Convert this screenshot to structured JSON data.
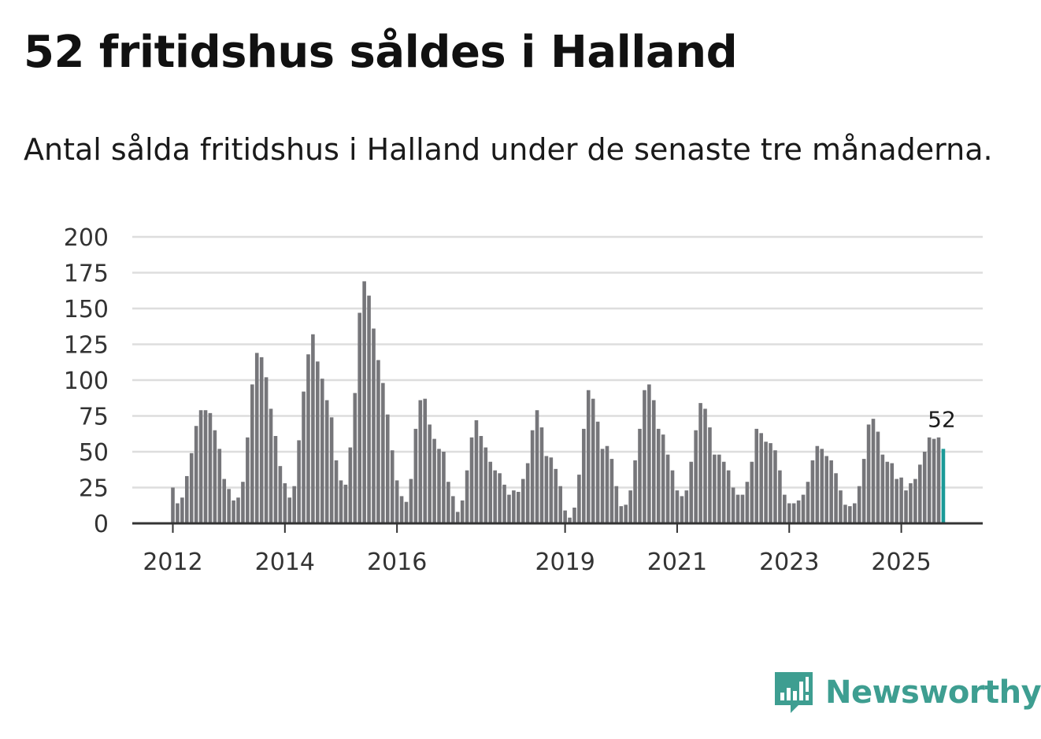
{
  "title": "52 fritidshus såldes i Halland",
  "subtitle": "Antal sålda fritidshus i Halland under de senaste tre månaderna.",
  "brand": {
    "name": "Newsworthy",
    "icon": "bar-chart-speech-bubble-icon"
  },
  "colors": {
    "bars": "#76767a",
    "highlight": "#1b9a98",
    "grid": "#dddddd",
    "axis": "#333333",
    "brand": "#3e9e91"
  },
  "chart_data": {
    "type": "bar",
    "title": "52 fritidshus såldes i Halland",
    "xlabel": "",
    "ylabel": "",
    "ylim": [
      0,
      200
    ],
    "yticks": [
      0,
      25,
      50,
      75,
      100,
      125,
      150,
      175,
      200
    ],
    "x_tick_labels": [
      {
        "label": "2012",
        "month_index": 0
      },
      {
        "label": "2014",
        "month_index": 24
      },
      {
        "label": "2016",
        "month_index": 48
      },
      {
        "label": "2019",
        "month_index": 84
      },
      {
        "label": "2021",
        "month_index": 108
      },
      {
        "label": "2023",
        "month_index": 132
      },
      {
        "label": "2025",
        "month_index": 156
      }
    ],
    "period": "monthly, jan 2012 – sep 2025 (rolling three-month totals)",
    "series": [
      {
        "name": "Antal sålda fritidshus",
        "values": [
          25,
          14,
          18,
          33,
          49,
          68,
          79,
          79,
          77,
          65,
          52,
          31,
          24,
          16,
          18,
          29,
          60,
          97,
          119,
          116,
          102,
          80,
          61,
          40,
          28,
          18,
          26,
          58,
          92,
          118,
          132,
          113,
          101,
          86,
          74,
          44,
          30,
          27,
          53,
          91,
          147,
          169,
          159,
          136,
          114,
          98,
          76,
          51,
          30,
          19,
          15,
          31,
          66,
          86,
          87,
          69,
          59,
          52,
          50,
          29,
          19,
          8,
          16,
          37,
          60,
          72,
          61,
          53,
          43,
          37,
          35,
          27,
          20,
          23,
          22,
          31,
          42,
          65,
          79,
          67,
          47,
          46,
          38,
          26,
          9,
          4,
          11,
          34,
          66,
          93,
          87,
          71,
          52,
          54,
          45,
          26,
          12,
          13,
          23,
          44,
          66,
          93,
          97,
          86,
          66,
          62,
          48,
          37,
          23,
          19,
          23,
          43,
          65,
          84,
          80,
          67,
          48,
          48,
          43,
          37,
          25,
          20,
          20,
          29,
          43,
          66,
          63,
          57,
          56,
          51,
          37,
          20,
          14,
          14,
          16,
          20,
          29,
          44,
          54,
          52,
          47,
          44,
          35,
          23,
          13,
          12,
          14,
          26,
          45,
          69,
          73,
          64,
          48,
          43,
          42,
          31,
          32,
          23,
          28,
          31,
          41,
          50,
          60,
          59,
          60,
          52
        ]
      }
    ],
    "annotations": [
      {
        "label": "52",
        "value": 52,
        "position": "last-bar"
      }
    ]
  }
}
